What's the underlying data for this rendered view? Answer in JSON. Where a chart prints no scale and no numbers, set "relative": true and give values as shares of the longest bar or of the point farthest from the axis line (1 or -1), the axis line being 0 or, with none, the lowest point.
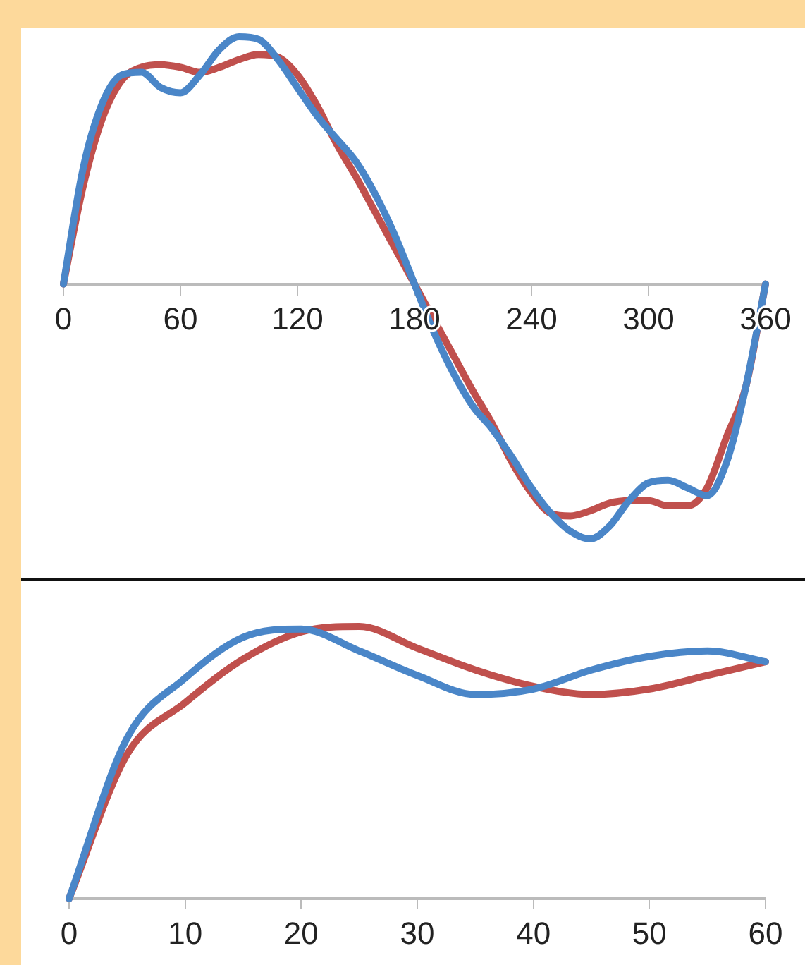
{
  "chart_data": [
    {
      "type": "line",
      "relative": true,
      "x": [
        0,
        10,
        20,
        30,
        40,
        50,
        60,
        70,
        80,
        90,
        100,
        110,
        120,
        130,
        140,
        150,
        160,
        170,
        180,
        190,
        200,
        210,
        220,
        230,
        240,
        250,
        260,
        270,
        280,
        290,
        300,
        310,
        320,
        330,
        340,
        350,
        360
      ],
      "xlim": [
        0,
        360
      ],
      "xticks": [
        0,
        60,
        120,
        180,
        240,
        300,
        360
      ],
      "grid": false,
      "legend": false,
      "marker": "none",
      "line_style": "solid",
      "series": [
        {
          "color": "#4a86c8",
          "values": [
            0,
            0.45,
            0.71,
            0.82,
            0.83,
            0.77,
            0.75,
            0.82,
            0.92,
            0.97,
            0.96,
            0.88,
            0.77,
            0.66,
            0.57,
            0.48,
            0.35,
            0.19,
            0,
            -0.19,
            -0.35,
            -0.48,
            -0.57,
            -0.68,
            -0.8,
            -0.9,
            -0.97,
            -1,
            -0.95,
            -0.85,
            -0.78,
            -0.77,
            -0.8,
            -0.83,
            -0.7,
            -0.4,
            0
          ]
        },
        {
          "color": "#c0504d",
          "values": [
            0,
            0.38,
            0.65,
            0.8,
            0.85,
            0.86,
            0.85,
            0.83,
            0.85,
            0.88,
            0.9,
            0.89,
            0.82,
            0.7,
            0.55,
            0.42,
            0.28,
            0.14,
            0,
            -0.14,
            -0.28,
            -0.42,
            -0.55,
            -0.7,
            -0.82,
            -0.9,
            -0.91,
            -0.89,
            -0.86,
            -0.85,
            -0.85,
            -0.87,
            -0.87,
            -0.8,
            -0.6,
            -0.4,
            0
          ]
        }
      ]
    },
    {
      "type": "line",
      "relative": true,
      "x": [
        0,
        5,
        10,
        15,
        20,
        25,
        30,
        35,
        40,
        45,
        50,
        55,
        60
      ],
      "xlim": [
        0,
        60
      ],
      "xticks": [
        0,
        10,
        20,
        30,
        40,
        50,
        60
      ],
      "grid": false,
      "legend": false,
      "marker": "none",
      "line_style": "solid",
      "series": [
        {
          "color": "#4a86c8",
          "values": [
            0,
            0.59,
            0.81,
            0.96,
            0.99,
            0.91,
            0.82,
            0.75,
            0.77,
            0.84,
            0.89,
            0.91,
            0.87
          ]
        },
        {
          "color": "#c0504d",
          "values": [
            0,
            0.53,
            0.72,
            0.88,
            0.98,
            1,
            0.92,
            0.84,
            0.78,
            0.75,
            0.77,
            0.82,
            0.87
          ]
        }
      ]
    }
  ]
}
